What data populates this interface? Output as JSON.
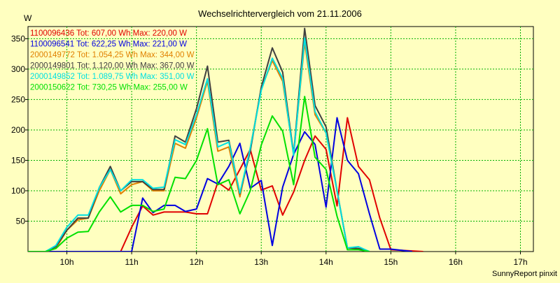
{
  "chart_data": {
    "type": "line",
    "title": "Wechselrichtervergleich vom 21.11.2006",
    "ylabel": "W",
    "xlabel": "",
    "credit": "SunnyReport pinxit",
    "grid": true,
    "legend_placement": "top-left",
    "xlim": [
      9.4,
      17.2
    ],
    "ylim": [
      0,
      370
    ],
    "x_ticks": [
      {
        "value": 10,
        "label": "10h"
      },
      {
        "value": 11,
        "label": "11h"
      },
      {
        "value": 12,
        "label": "12h"
      },
      {
        "value": 13,
        "label": "13h"
      },
      {
        "value": 14,
        "label": "14h"
      },
      {
        "value": 15,
        "label": "15h"
      },
      {
        "value": 16,
        "label": "16h"
      },
      {
        "value": 17,
        "label": "17h"
      }
    ],
    "y_ticks": [
      {
        "value": 50,
        "label": "50"
      },
      {
        "value": 100,
        "label": "100"
      },
      {
        "value": 150,
        "label": "150"
      },
      {
        "value": 200,
        "label": "200"
      },
      {
        "value": 250,
        "label": "250"
      },
      {
        "value": 300,
        "label": "300"
      },
      {
        "value": 350,
        "label": "350"
      }
    ],
    "x": [
      9.4,
      9.67,
      9.83,
      10.0,
      10.17,
      10.33,
      10.5,
      10.67,
      10.83,
      11.0,
      11.17,
      11.33,
      11.5,
      11.67,
      11.83,
      12.0,
      12.17,
      12.33,
      12.5,
      12.67,
      12.83,
      13.0,
      13.17,
      13.33,
      13.5,
      13.67,
      13.83,
      14.0,
      14.17,
      14.33,
      14.5,
      14.67,
      14.83,
      15.0,
      15.17,
      15.33,
      15.5,
      15.67,
      15.83,
      16.0,
      16.17,
      16.33,
      16.5,
      16.67,
      16.83,
      17.0,
      17.2
    ],
    "series": [
      {
        "name": "1100096436",
        "legend": "1100096436 Tot: 607,00 Wh Max: 220,00 W",
        "color": "#E00000",
        "values": [
          0,
          0,
          0,
          0,
          0,
          0,
          0,
          0,
          0,
          40,
          75,
          60,
          65,
          65,
          65,
          62,
          62,
          114,
          101,
          135,
          168,
          101,
          108,
          60,
          98,
          150,
          190,
          168,
          75,
          220,
          140,
          118,
          55,
          3,
          2,
          1,
          0,
          null,
          null,
          null,
          null,
          null,
          null,
          null,
          null,
          null,
          null
        ]
      },
      {
        "name": "1100096541",
        "legend": "1100096541 Tot: 622,25 Wh Max: 221,00 W",
        "color": "#0000E0",
        "values": [
          0,
          0,
          0,
          0,
          0,
          0,
          0,
          0,
          0,
          0,
          88,
          64,
          76,
          76,
          66,
          70,
          120,
          111,
          140,
          178,
          104,
          117,
          10,
          106,
          160,
          197,
          176,
          73,
          220,
          150,
          128,
          62,
          4,
          4,
          2,
          0,
          null,
          null,
          null,
          null,
          null,
          null,
          null,
          null,
          null,
          null,
          null
        ]
      },
      {
        "name": "2000149772",
        "legend": "2000149772 Tot: 1.054,25 Wh Max: 344,00 W",
        "color": "#E08000",
        "values": [
          0,
          0,
          5,
          35,
          52,
          55,
          100,
          135,
          95,
          110,
          115,
          100,
          100,
          178,
          170,
          220,
          280,
          165,
          172,
          90,
          170,
          268,
          314,
          280,
          160,
          344,
          225,
          195,
          100,
          6,
          5,
          0,
          null,
          null,
          null,
          null,
          null,
          null,
          null,
          null,
          null,
          null,
          null,
          null,
          null,
          null,
          null
        ]
      },
      {
        "name": "2000149801",
        "legend": "2000149801 Tot: 1.120,00 Wh Max: 367,00 W",
        "color": "#404040",
        "values": [
          0,
          0,
          8,
          35,
          55,
          55,
          105,
          140,
          100,
          115,
          115,
          102,
          102,
          190,
          180,
          235,
          305,
          180,
          183,
          95,
          165,
          270,
          335,
          295,
          160,
          367,
          240,
          205,
          100,
          6,
          5,
          0,
          null,
          null,
          null,
          null,
          null,
          null,
          null,
          null,
          null,
          null,
          null,
          null,
          null,
          null,
          null
        ]
      },
      {
        "name": "2000149852",
        "legend": "2000149852 Tot: 1.089,75 Wh Max: 351,00 W",
        "color": "#00E0E0",
        "values": [
          0,
          0,
          10,
          40,
          60,
          60,
          105,
          135,
          100,
          118,
          118,
          104,
          106,
          184,
          176,
          225,
          284,
          172,
          180,
          96,
          170,
          265,
          318,
          285,
          158,
          351,
          230,
          195,
          100,
          6,
          8,
          0,
          null,
          null,
          null,
          null,
          null,
          null,
          null,
          null,
          null,
          null,
          null,
          null,
          null,
          null,
          null
        ]
      },
      {
        "name": "2000150622",
        "legend": "2000150622 Tot: 730,25 Wh Max: 255,00 W",
        "color": "#00E000",
        "values": [
          0,
          0,
          5,
          22,
          32,
          33,
          65,
          90,
          65,
          76,
          76,
          66,
          70,
          122,
          120,
          150,
          202,
          110,
          118,
          62,
          100,
          175,
          223,
          198,
          110,
          255,
          155,
          135,
          58,
          3,
          3,
          0,
          null,
          null,
          null,
          null,
          null,
          null,
          null,
          null,
          null,
          null,
          null,
          null,
          null,
          null,
          null
        ]
      }
    ]
  }
}
